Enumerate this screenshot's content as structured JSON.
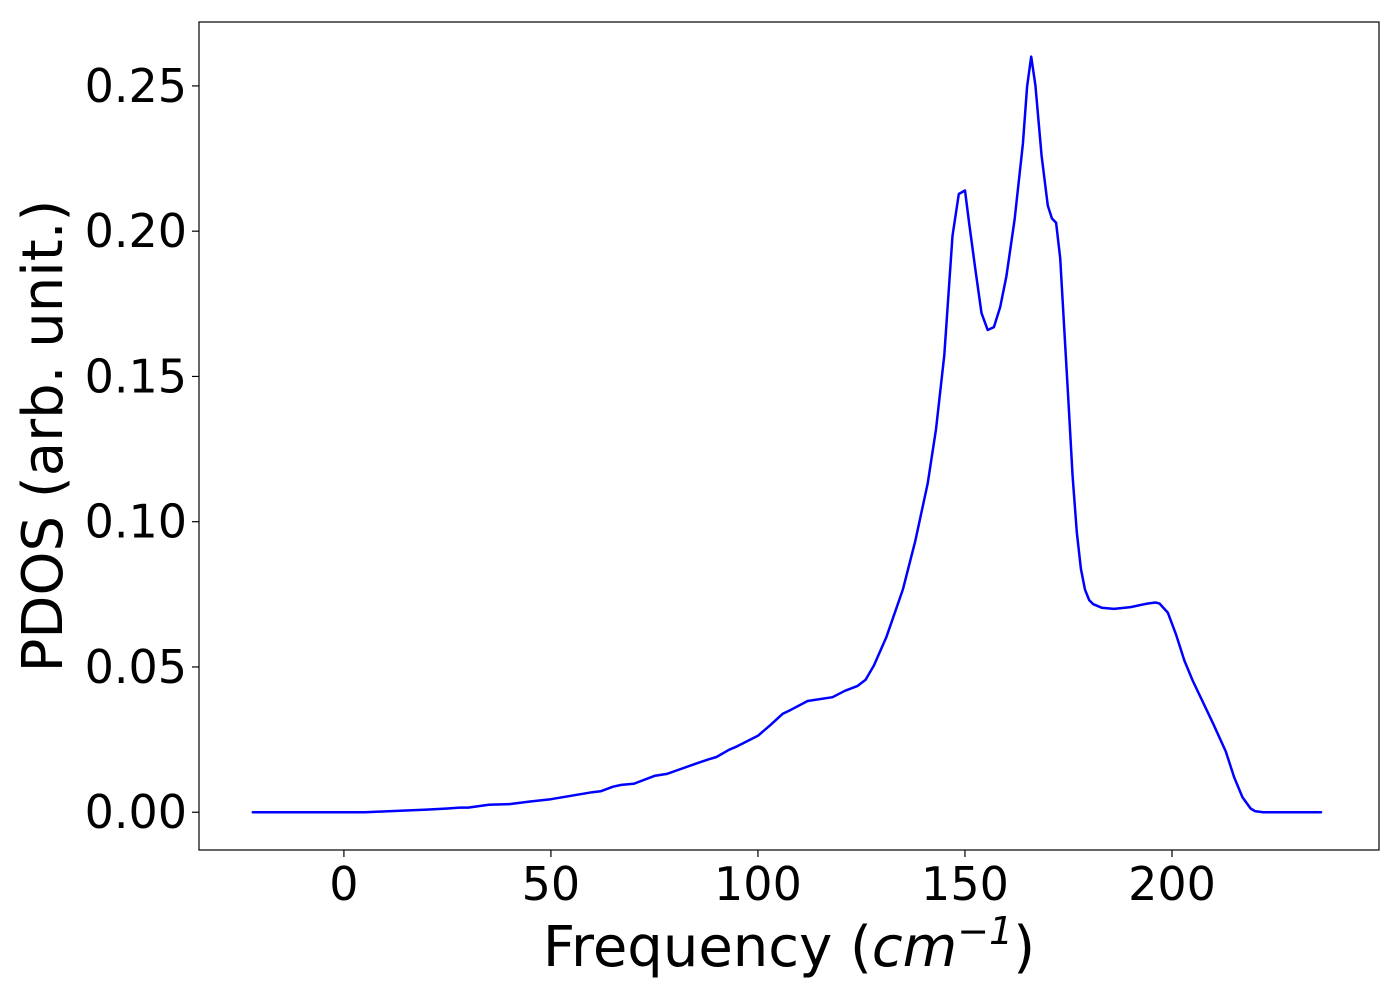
{
  "chart_data": {
    "type": "line",
    "title": "",
    "xlabel": {
      "text": "Frequency (",
      "unit_base": "cm",
      "unit_exponent": "−1",
      "close": ")"
    },
    "ylabel": "PDOS (arb. unit.)",
    "xlim": [
      -35,
      250
    ],
    "ylim": [
      -0.013,
      0.272
    ],
    "xticks": [
      0,
      50,
      100,
      150,
      200
    ],
    "xtick_labels": [
      "0",
      "50",
      "100",
      "150",
      "200"
    ],
    "yticks": [
      0.0,
      0.05,
      0.1,
      0.15,
      0.2,
      0.25
    ],
    "ytick_labels": [
      "0.00",
      "0.05",
      "0.10",
      "0.15",
      "0.20",
      "0.25"
    ],
    "grid": false,
    "series": [
      {
        "color": "#0000ff",
        "x": [
          -22,
          0,
          5,
          10,
          15,
          20,
          25,
          28,
          30,
          35,
          40,
          45,
          50,
          55,
          60,
          62,
          65,
          67,
          70,
          75,
          78,
          80,
          85,
          88,
          90,
          93,
          95,
          100,
          103,
          106,
          108,
          112,
          118,
          121,
          124,
          126,
          128,
          131,
          135,
          138,
          141,
          143,
          145,
          147,
          148.5,
          150,
          151,
          152.5,
          154,
          155.5,
          157,
          158.5,
          160,
          162,
          164,
          165,
          166,
          167,
          168.5,
          170,
          171,
          172,
          173,
          174,
          175,
          176,
          177,
          178,
          179,
          180,
          181,
          183,
          186,
          190,
          194,
          196,
          197,
          199,
          201,
          203,
          205,
          210,
          213,
          215,
          217,
          219,
          220,
          222,
          230,
          236
        ],
        "y": [
          0.0,
          0.0,
          0.0,
          0.0003,
          0.0006,
          0.0009,
          0.0013,
          0.0016,
          0.0016,
          0.0026,
          0.0028,
          0.0037,
          0.0045,
          0.0057,
          0.0069,
          0.0072,
          0.0088,
          0.0094,
          0.0098,
          0.0125,
          0.0132,
          0.0142,
          0.0167,
          0.0182,
          0.019,
          0.0215,
          0.0227,
          0.0263,
          0.03,
          0.0339,
          0.0353,
          0.0383,
          0.0396,
          0.0418,
          0.0434,
          0.0456,
          0.0505,
          0.0602,
          0.0767,
          0.0934,
          0.1132,
          0.1318,
          0.1573,
          0.1984,
          0.2128,
          0.214,
          0.2029,
          0.187,
          0.1718,
          0.166,
          0.167,
          0.1739,
          0.1845,
          0.204,
          0.2301,
          0.2498,
          0.2601,
          0.2502,
          0.2259,
          0.2088,
          0.2044,
          0.2029,
          0.1907,
          0.1661,
          0.141,
          0.1157,
          0.0964,
          0.0838,
          0.0766,
          0.073,
          0.0716,
          0.0704,
          0.07,
          0.0706,
          0.0718,
          0.0722,
          0.0718,
          0.0687,
          0.0611,
          0.0522,
          0.0453,
          0.0303,
          0.0209,
          0.0121,
          0.0052,
          0.0013,
          0.0004,
          0.0,
          0.0,
          0.0
        ]
      }
    ]
  }
}
